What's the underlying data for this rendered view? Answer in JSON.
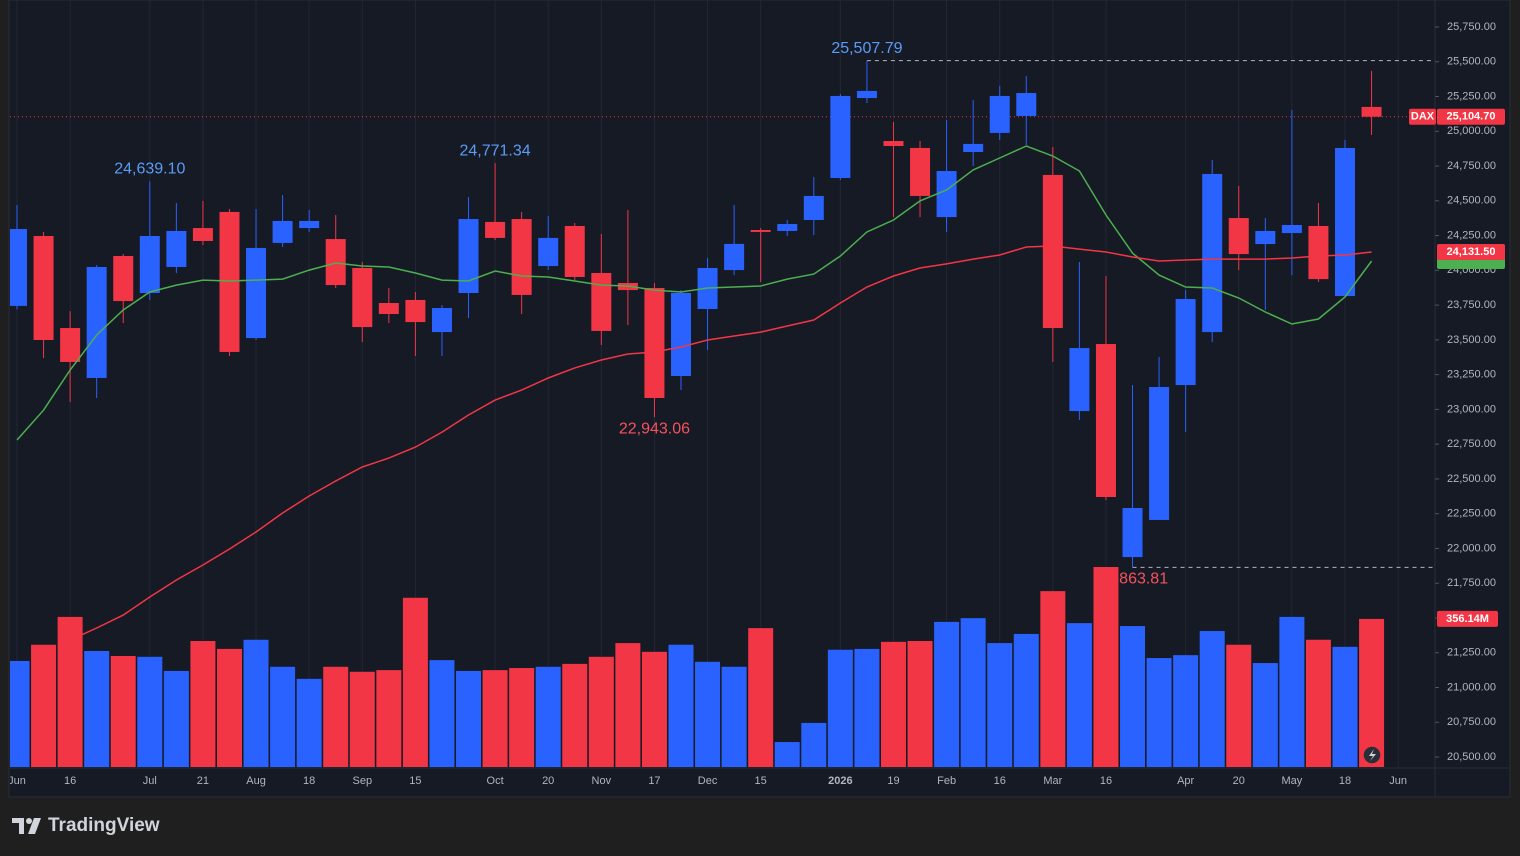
{
  "chart_data": {
    "type": "candlestick",
    "symbol": "DAX",
    "up_color": "#2962ff",
    "down_color": "#f23645",
    "grid": true,
    "categories": [
      "Jun",
      null,
      "16",
      null,
      null,
      "Jul",
      null,
      "21",
      null,
      "Aug",
      null,
      "18",
      null,
      "Sep",
      null,
      "15",
      null,
      null,
      "Oct",
      null,
      "20",
      null,
      "Nov",
      null,
      "17",
      null,
      "Dec",
      null,
      "15",
      null,
      null,
      "2026",
      null,
      "19",
      null,
      "Feb",
      null,
      "16",
      null,
      "Mar",
      null,
      "16",
      null,
      null,
      "Apr",
      null,
      "20",
      null,
      "May",
      null,
      "18",
      null,
      "Jun"
    ],
    "open": [
      23744,
      24247,
      23585,
      23226,
      24103,
      23837,
      24024,
      24304,
      24420,
      23513,
      24197,
      24304,
      24225,
      24017,
      23765,
      23787,
      23556,
      23837,
      24348,
      24369,
      24031,
      24319,
      23981,
      23909,
      23873,
      23240,
      23722,
      24002,
      24290,
      24283,
      24362,
      24664,
      25239,
      24930,
      24880,
      24383,
      24851,
      24988,
      25110,
      24686,
      22988,
      23470,
      21938,
      22205,
      23175,
      23556,
      24376,
      24189,
      24268,
      24319,
      23815,
      25175,
      null
    ],
    "high": [
      24470,
      24276,
      23707,
      24038,
      24117,
      24639.1,
      24484,
      24499,
      24441,
      24441,
      24542,
      24434,
      24398,
      24060,
      23873,
      23844,
      23751,
      24527,
      24771.34,
      24420,
      24391,
      24340,
      24261,
      24434,
      23909,
      23859,
      24089,
      24470,
      24304,
      24362,
      24671,
      25268,
      25507.79,
      25067,
      24930,
      25081,
      25225,
      25326,
      25398,
      24887,
      24060,
      23959,
      23175,
      23377,
      23859,
      24794,
      24607,
      24376,
      25153,
      24484,
      24937,
      25434,
      null
    ],
    "low": [
      23720,
      23369,
      23053,
      23082,
      23621,
      23787,
      23981,
      24182,
      23384,
      23499,
      24168,
      24276,
      23873,
      23484,
      23621,
      23384,
      23384,
      23657,
      24218,
      23686,
      24002,
      23930,
      23463,
      23607,
      22943.06,
      23139,
      23427,
      23966,
      23916,
      24247,
      24254,
      24650,
      25203,
      24383,
      24383,
      24276,
      24750,
      24937,
      24901,
      23341,
      22924,
      22348,
      21863.81,
      22205,
      22837,
      23484,
      24002,
      23715,
      23966,
      23916,
      23801,
      24973,
      null
    ],
    "close": [
      24297,
      23499,
      23341,
      24024,
      23779,
      24247,
      24283,
      24211,
      23413,
      24161,
      24355,
      24355,
      23894,
      23592,
      23686,
      23628,
      23729,
      24369,
      24233,
      23823,
      24233,
      23952,
      23564,
      23858,
      23082,
      23837,
      24017,
      24190,
      24276,
      24333,
      24535,
      25254,
      25290,
      24894,
      24535,
      24714,
      24909,
      25254,
      25275,
      23585,
      23441,
      22370,
      22291,
      23161,
      23794,
      24693,
      24117,
      24283,
      24326,
      23937,
      24880,
      25104.7,
      null
    ],
    "high_labels": [
      null,
      null,
      null,
      null,
      null,
      "24,639.10",
      null,
      null,
      null,
      null,
      null,
      null,
      null,
      null,
      null,
      null,
      null,
      null,
      "24,771.34",
      null,
      null,
      null,
      null,
      null,
      null,
      null,
      null,
      null,
      null,
      null,
      null,
      null,
      "25,507.79",
      null,
      null,
      null,
      null,
      null,
      null,
      null,
      null,
      null,
      null,
      null,
      null,
      null,
      null,
      null,
      null,
      null,
      null,
      null,
      null
    ],
    "low_labels": [
      null,
      null,
      null,
      null,
      null,
      null,
      null,
      null,
      null,
      null,
      null,
      null,
      null,
      null,
      null,
      null,
      null,
      null,
      null,
      null,
      null,
      null,
      null,
      null,
      "22,943.06",
      null,
      null,
      null,
      null,
      null,
      null,
      null,
      null,
      null,
      null,
      null,
      null,
      null,
      null,
      null,
      null,
      null,
      "21,863.81",
      null,
      null,
      null,
      null,
      null,
      null,
      null,
      null,
      null,
      null
    ],
    "close_labels": [
      null,
      null,
      null,
      null,
      null,
      null,
      null,
      null,
      null,
      null,
      null,
      null,
      null,
      null,
      null,
      null,
      null,
      null,
      null,
      null,
      null,
      null,
      null,
      null,
      null,
      null,
      null,
      null,
      null,
      null,
      null,
      null,
      null,
      null,
      null,
      null,
      null,
      null,
      null,
      null,
      null,
      null,
      null,
      null,
      null,
      null,
      null,
      null,
      null,
      null,
      null,
      "25,104.70",
      null
    ],
    "lines": [
      {
        "color": "#4caf50",
        "values": [
          22780,
          22995,
          23283,
          23535,
          23715,
          23844,
          23894,
          23930,
          23923,
          23930,
          23937,
          24002,
          24053,
          24031,
          24024,
          23981,
          23930,
          23923,
          23995,
          23959,
          23952,
          23923,
          23894,
          23887,
          23858,
          23844,
          23873,
          23880,
          23887,
          23937,
          23973,
          24103,
          24276,
          24362,
          24499,
          24578,
          24722,
          24808,
          24894,
          24822,
          24714,
          24398,
          24124,
          23966,
          23880,
          23873,
          23801,
          23700,
          23614,
          23650,
          23808,
          24067,
          null
        ]
      },
      {
        "color": "#f23645",
        "values": [
          null,
          null,
          21341,
          21428,
          21521,
          21651,
          21773,
          21881,
          21996,
          22118,
          22255,
          22377,
          22485,
          22586,
          22650,
          22729,
          22837,
          22960,
          23067,
          23139,
          23226,
          23298,
          23355,
          23398,
          23413,
          23449,
          23499,
          23528,
          23556,
          23600,
          23643,
          23765,
          23880,
          23959,
          24017,
          24046,
          24081,
          24110,
          24168,
          24175,
          24153,
          24132,
          24096,
          24067,
          24074,
          24081,
          24081,
          24081,
          24089,
          24103,
          24110,
          24131.5,
          null
        ],
        "value_labels": [
          null,
          null,
          null,
          null,
          null,
          null,
          null,
          null,
          null,
          null,
          null,
          null,
          null,
          null,
          null,
          null,
          null,
          null,
          null,
          null,
          null,
          null,
          null,
          null,
          null,
          null,
          null,
          null,
          null,
          null,
          null,
          null,
          null,
          null,
          null,
          null,
          null,
          null,
          null,
          null,
          null,
          null,
          null,
          null,
          null,
          null,
          null,
          null,
          null,
          null,
          null,
          "24,131.50",
          null
        ]
      }
    ],
    "volume": {
      "values": [
        255,
        294,
        361,
        279,
        267,
        265,
        231,
        303,
        284,
        306,
        241,
        212,
        241,
        229,
        233,
        407,
        257,
        231,
        233,
        238,
        241,
        248,
        265,
        298,
        277,
        294,
        253,
        241,
        334,
        60,
        106,
        282,
        284,
        301,
        303,
        349,
        358,
        298,
        320,
        423,
        346,
        481,
        339,
        262,
        269,
        327,
        294,
        250,
        361,
        306,
        289,
        356.14,
        null
      ],
      "value_labels": [
        null,
        null,
        null,
        null,
        null,
        null,
        null,
        null,
        null,
        null,
        null,
        null,
        null,
        null,
        null,
        null,
        null,
        null,
        null,
        null,
        null,
        null,
        null,
        null,
        null,
        null,
        null,
        null,
        null,
        null,
        null,
        null,
        null,
        null,
        null,
        null,
        null,
        null,
        null,
        null,
        null,
        null,
        null,
        null,
        null,
        null,
        null,
        null,
        null,
        null,
        null,
        "356.14M",
        null
      ]
    },
    "ylim": [
      20227,
      25944
    ],
    "yticks": [
      {
        "value": 20500,
        "label": "20,500.00"
      },
      {
        "value": 20750,
        "label": "20,750.00"
      },
      {
        "value": 21000,
        "label": "21,000.00"
      },
      {
        "value": 21250,
        "label": "21,250.00"
      },
      {
        "value": 21500,
        "label": "21,500.00"
      },
      {
        "value": 21750,
        "label": "21,750.00"
      },
      {
        "value": 22000,
        "label": "22,000.00"
      },
      {
        "value": 22250,
        "label": "22,250.00"
      },
      {
        "value": 22500,
        "label": "22,500.00"
      },
      {
        "value": 22750,
        "label": "22,750.00"
      },
      {
        "value": 23000,
        "label": "23,000.00"
      },
      {
        "value": 23250,
        "label": "23,250.00"
      },
      {
        "value": 23500,
        "label": "23,500.00"
      },
      {
        "value": 23750,
        "label": "23,750.00"
      },
      {
        "value": 24000,
        "label": "24,000.00"
      },
      {
        "value": 24250,
        "label": "24,250.00"
      },
      {
        "value": 24500,
        "label": "24,500.00"
      },
      {
        "value": 24750,
        "label": "24,750.00"
      },
      {
        "value": 25000,
        "label": "25,000.00"
      },
      {
        "value": 25250,
        "label": "25,250.00"
      },
      {
        "value": 25500,
        "label": "25,500.00"
      },
      {
        "value": 25750,
        "label": "25,750.00"
      }
    ]
  },
  "footer": {
    "brand": "TradingView"
  }
}
